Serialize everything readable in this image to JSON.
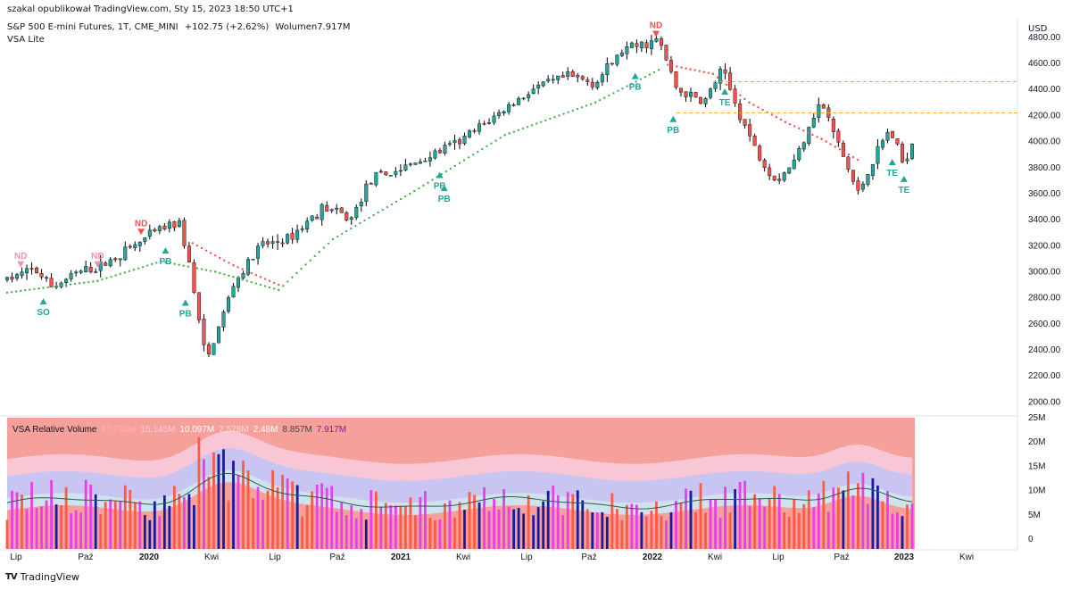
{
  "header": {
    "publisher": "szakal opublikował TradingView.com, Sty 15, 2023 18:50 UTC+1",
    "symbol": "S&P 500 E-mini Futures, 1T, CME_MINI",
    "change": "+102.75 (+2.62%)",
    "volume_label": "Wolumen",
    "volume_value": "7.917M",
    "indicator": "VSA Lite",
    "currency": "USD"
  },
  "footer": {
    "brand": "TradingView",
    "logo": "TV"
  },
  "colors": {
    "up": "#26a69a",
    "down": "#ef5350",
    "green_dots": "#4caf50",
    "red_dots": "#ef5350",
    "orange_line": "#ffa726",
    "signal_green": "#26a69a",
    "signal_red": "#ef5350",
    "signal_pink": "#f48fb1",
    "vol_bg": "#f5a09a",
    "band_pink": "#f8c6d4",
    "band_lavender": "#c9c5f2",
    "band_lightblue": "#cfe3ee",
    "bar_red": "#ff5a45",
    "bar_magenta": "#e83fe8",
    "bar_blue": "#1a1aa0"
  },
  "chart_data": [
    {
      "type": "candlestick",
      "title": "S&P 500 E-mini Futures, 1T, CME_MINI",
      "y_axis": {
        "ticks": [
          2000,
          2200,
          2400,
          2600,
          2800,
          3000,
          3200,
          3400,
          3600,
          3800,
          4000,
          4200,
          4400,
          4600,
          4800
        ],
        "ylim": [
          1900,
          4950
        ],
        "position": "right"
      },
      "x_axis": {
        "tick_labels": [
          "Lip",
          "Paź",
          "2020",
          "Kwi",
          "Lip",
          "Paź",
          "2021",
          "Kwi",
          "Lip",
          "Paź",
          "2022",
          "Kwi",
          "Lip",
          "Paź",
          "2023",
          "Kwi"
        ]
      },
      "close_path": [
        {
          "t": 0,
          "v": 2940
        },
        {
          "t": 0.03,
          "v": 3020
        },
        {
          "t": 0.05,
          "v": 2880
        },
        {
          "t": 0.08,
          "v": 3000
        },
        {
          "t": 0.1,
          "v": 3030
        },
        {
          "t": 0.14,
          "v": 3200
        },
        {
          "t": 0.17,
          "v": 3330
        },
        {
          "t": 0.19,
          "v": 3380
        },
        {
          "t": 0.2,
          "v": 3100
        },
        {
          "t": 0.21,
          "v": 2700
        },
        {
          "t": 0.22,
          "v": 2300
        },
        {
          "t": 0.235,
          "v": 2600
        },
        {
          "t": 0.25,
          "v": 2900
        },
        {
          "t": 0.28,
          "v": 3200
        },
        {
          "t": 0.31,
          "v": 3250
        },
        {
          "t": 0.35,
          "v": 3500
        },
        {
          "t": 0.38,
          "v": 3400
        },
        {
          "t": 0.4,
          "v": 3700
        },
        {
          "t": 0.44,
          "v": 3800
        },
        {
          "t": 0.47,
          "v": 3900
        },
        {
          "t": 0.5,
          "v": 4000
        },
        {
          "t": 0.54,
          "v": 4200
        },
        {
          "t": 0.58,
          "v": 4400
        },
        {
          "t": 0.62,
          "v": 4500
        },
        {
          "t": 0.65,
          "v": 4450
        },
        {
          "t": 0.68,
          "v": 4700
        },
        {
          "t": 0.72,
          "v": 4780
        },
        {
          "t": 0.74,
          "v": 4400
        },
        {
          "t": 0.77,
          "v": 4300
        },
        {
          "t": 0.79,
          "v": 4550
        },
        {
          "t": 0.81,
          "v": 4200
        },
        {
          "t": 0.83,
          "v": 3900
        },
        {
          "t": 0.85,
          "v": 3700
        },
        {
          "t": 0.87,
          "v": 3850
        },
        {
          "t": 0.89,
          "v": 4200
        },
        {
          "t": 0.9,
          "v": 4300
        },
        {
          "t": 0.92,
          "v": 3950
        },
        {
          "t": 0.94,
          "v": 3600
        },
        {
          "t": 0.96,
          "v": 3900
        },
        {
          "t": 0.975,
          "v": 4100
        },
        {
          "t": 0.99,
          "v": 3830
        },
        {
          "t": 1,
          "v": 4000
        }
      ],
      "trail_support": [
        {
          "t": 0,
          "v": 2840
        },
        {
          "t": 0.1,
          "v": 2930
        },
        {
          "t": 0.17,
          "v": 3080
        },
        {
          "t": 0.23,
          "v": 3000
        },
        {
          "t": 0.3,
          "v": 2860
        },
        {
          "t": 0.36,
          "v": 3250
        },
        {
          "t": 0.45,
          "v": 3620
        },
        {
          "t": 0.55,
          "v": 4050
        },
        {
          "t": 0.65,
          "v": 4300
        },
        {
          "t": 0.72,
          "v": 4550
        }
      ],
      "trail_resistance": [
        {
          "t": 0.205,
          "v": 3220
        },
        {
          "t": 0.25,
          "v": 3050
        },
        {
          "t": 0.3,
          "v": 2900
        },
        {
          "t": 0.73,
          "v": 4590
        },
        {
          "t": 0.78,
          "v": 4520
        },
        {
          "t": 0.82,
          "v": 4300
        },
        {
          "t": 0.86,
          "v": 4150
        },
        {
          "t": 0.9,
          "v": 4020
        },
        {
          "t": 0.94,
          "v": 3860
        }
      ],
      "levels": [
        {
          "value": 4460,
          "from_t": 0.78
        },
        {
          "value": 4220,
          "from_t": 0.74
        }
      ],
      "signals": [
        {
          "label": "ND",
          "t": 0.015,
          "v": 3060,
          "kind": "down",
          "color": "pink"
        },
        {
          "label": "SO",
          "t": 0.04,
          "v": 2770,
          "kind": "up",
          "color": "green"
        },
        {
          "label": "ND",
          "t": 0.1,
          "v": 3060,
          "kind": "down",
          "color": "pink"
        },
        {
          "label": "ND",
          "t": 0.148,
          "v": 3310,
          "kind": "down",
          "color": "red"
        },
        {
          "label": "PB",
          "t": 0.175,
          "v": 3160,
          "kind": "up",
          "color": "green"
        },
        {
          "label": "PB",
          "t": 0.197,
          "v": 2760,
          "kind": "up",
          "color": "green"
        },
        {
          "label": "PB",
          "t": 0.478,
          "v": 3740,
          "kind": "up",
          "color": "green"
        },
        {
          "label": "PB",
          "t": 0.483,
          "v": 3640,
          "kind": "up",
          "color": "green"
        },
        {
          "label": "ND",
          "t": 0.717,
          "v": 4830,
          "kind": "down",
          "color": "red"
        },
        {
          "label": "PB",
          "t": 0.694,
          "v": 4500,
          "kind": "up",
          "color": "green"
        },
        {
          "label": "PB",
          "t": 0.736,
          "v": 4170,
          "kind": "up",
          "color": "green"
        },
        {
          "label": "TE",
          "t": 0.793,
          "v": 4380,
          "kind": "up",
          "color": "green"
        },
        {
          "label": "TE",
          "t": 0.978,
          "v": 3840,
          "kind": "up",
          "color": "green"
        },
        {
          "label": "TE",
          "t": 0.991,
          "v": 3710,
          "kind": "up",
          "color": "green"
        }
      ]
    },
    {
      "type": "bar",
      "title": "VSA Relative Volume",
      "legend_values": [
        "17.713M",
        "15.145M",
        "10.097M",
        "7.528M",
        "2.48M",
        "8.857M",
        "7.917M"
      ],
      "legend_colors": [
        "#ffb3b3",
        "#ffc7e4",
        "#ffffff",
        "#ffe0e0",
        "#ffffff",
        "#444444",
        "#7b1fa2"
      ],
      "y_axis": {
        "ticks": [
          0,
          5,
          10,
          15,
          20,
          25
        ],
        "tick_labels": [
          "0",
          "5M",
          "10M",
          "15M",
          "20M",
          "25M"
        ],
        "ylim": [
          -2,
          25
        ]
      }
    }
  ]
}
